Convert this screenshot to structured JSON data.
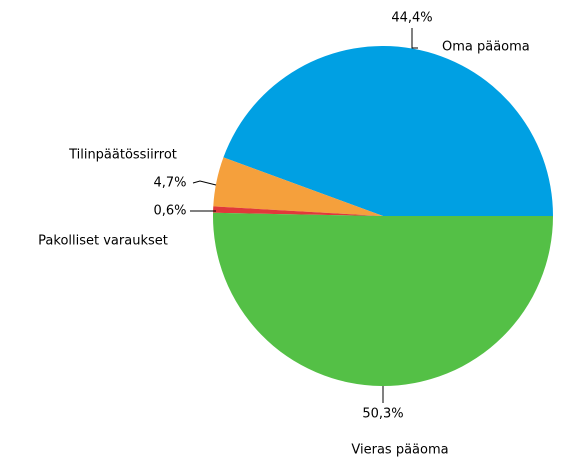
{
  "chart_data": {
    "type": "pie",
    "categories": [
      "Oma pääoma",
      "Tilinpäätössiirrot",
      "Pakolliset varaukset",
      "Vieras pääoma"
    ],
    "values": [
      44.4,
      4.7,
      0.6,
      50.3
    ],
    "value_labels": [
      "44,4%",
      "4,7%",
      "0,6%",
      "50,3%"
    ],
    "colors": [
      "#00a0e3",
      "#f5a03c",
      "#e0393a",
      "#54c046"
    ]
  }
}
